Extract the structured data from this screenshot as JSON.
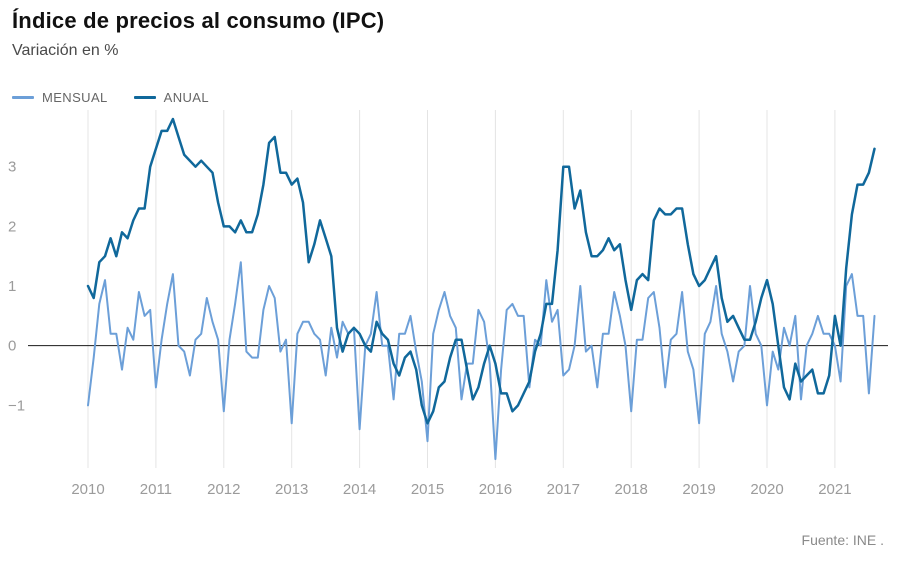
{
  "header": {
    "title": "Índice de precios al consumo (IPC)",
    "subtitle": "Variación en %"
  },
  "legend": [
    {
      "label": "MENSUAL",
      "color": "#6c9fd8"
    },
    {
      "label": "ANUAL",
      "color": "#10689b"
    }
  ],
  "footer": {
    "source": "Fuente: INE ."
  },
  "chart_data": {
    "type": "line",
    "title": "Índice de precios al consumo (IPC)",
    "subtitle": "Variación en %",
    "x_unit": "month",
    "x_start": "2010-01",
    "x_end": "2021-08",
    "x_start_year": 2010,
    "x_tick_labels": [
      "2010",
      "2011",
      "2012",
      "2013",
      "2014",
      "2015",
      "2016",
      "2017",
      "2018",
      "2019",
      "2020",
      "2021"
    ],
    "y_ticks": [
      {
        "label": "3",
        "value": 3
      },
      {
        "label": "2",
        "value": 2
      },
      {
        "label": "1",
        "value": 1
      },
      {
        "label": "0",
        "value": 0
      },
      {
        "label": "−1",
        "value": -1
      }
    ],
    "ylim": [
      -2.05,
      3.95
    ],
    "grid": "vertical-only",
    "grid_color": "#e4e4e4",
    "zero_line_color": "#1a1a1a",
    "tick_color": "#9b9b9b",
    "legend_position": "top-left",
    "series": [
      {
        "name": "MENSUAL",
        "color": "#6c9fd8",
        "width": 2,
        "values": [
          -1.0,
          -0.2,
          0.7,
          1.1,
          0.2,
          0.2,
          -0.4,
          0.3,
          0.1,
          0.9,
          0.5,
          0.6,
          -0.7,
          0.1,
          0.7,
          1.2,
          0.0,
          -0.1,
          -0.5,
          0.1,
          0.2,
          0.8,
          0.4,
          0.1,
          -1.1,
          0.1,
          0.7,
          1.4,
          -0.1,
          -0.2,
          -0.2,
          0.6,
          1.0,
          0.8,
          -0.1,
          0.1,
          -1.3,
          0.2,
          0.4,
          0.4,
          0.2,
          0.1,
          -0.5,
          0.3,
          -0.2,
          0.4,
          0.2,
          0.3,
          -1.4,
          0.0,
          0.2,
          0.9,
          0.0,
          0.0,
          -0.9,
          0.2,
          0.2,
          0.5,
          -0.1,
          -0.6,
          -1.6,
          0.2,
          0.6,
          0.9,
          0.5,
          0.3,
          -0.9,
          -0.3,
          -0.3,
          0.6,
          0.4,
          -0.3,
          -1.9,
          -0.4,
          0.6,
          0.7,
          0.5,
          0.5,
          -0.7,
          0.1,
          0.0,
          1.1,
          0.4,
          0.6,
          -0.5,
          -0.4,
          0.0,
          1.0,
          -0.1,
          0.0,
          -0.7,
          0.2,
          0.2,
          0.9,
          0.5,
          0.0,
          -1.1,
          0.1,
          0.1,
          0.8,
          0.9,
          0.3,
          -0.7,
          0.1,
          0.2,
          0.9,
          -0.1,
          -0.4,
          -1.3,
          0.2,
          0.4,
          1.0,
          0.2,
          -0.1,
          -0.6,
          -0.1,
          0.0,
          1.0,
          0.2,
          0.0,
          -1.0,
          -0.1,
          -0.4,
          0.3,
          0.0,
          0.5,
          -0.9,
          0.0,
          0.2,
          0.5,
          0.2,
          0.2,
          0.0,
          -0.6,
          1.0,
          1.2,
          0.5,
          0.5,
          -0.8,
          0.5
        ]
      },
      {
        "name": "ANUAL",
        "color": "#10689b",
        "width": 2.5,
        "values": [
          1.0,
          0.8,
          1.4,
          1.5,
          1.8,
          1.5,
          1.9,
          1.8,
          2.1,
          2.3,
          2.3,
          3.0,
          3.3,
          3.6,
          3.6,
          3.8,
          3.5,
          3.2,
          3.1,
          3.0,
          3.1,
          3.0,
          2.9,
          2.4,
          2.0,
          2.0,
          1.9,
          2.1,
          1.9,
          1.9,
          2.2,
          2.7,
          3.4,
          3.5,
          2.9,
          2.9,
          2.7,
          2.8,
          2.4,
          1.4,
          1.7,
          2.1,
          1.8,
          1.5,
          0.3,
          -0.1,
          0.2,
          0.3,
          0.2,
          0.0,
          -0.1,
          0.4,
          0.2,
          0.1,
          -0.3,
          -0.5,
          -0.2,
          -0.1,
          -0.4,
          -1.0,
          -1.3,
          -1.1,
          -0.7,
          -0.6,
          -0.2,
          0.1,
          0.1,
          -0.4,
          -0.9,
          -0.7,
          -0.3,
          0.0,
          -0.3,
          -0.8,
          -0.8,
          -1.1,
          -1.0,
          -0.8,
          -0.6,
          -0.1,
          0.2,
          0.7,
          0.7,
          1.6,
          3.0,
          3.0,
          2.3,
          2.6,
          1.9,
          1.5,
          1.5,
          1.6,
          1.8,
          1.6,
          1.7,
          1.1,
          0.6,
          1.1,
          1.2,
          1.1,
          2.1,
          2.3,
          2.2,
          2.2,
          2.3,
          2.3,
          1.7,
          1.2,
          1.0,
          1.1,
          1.3,
          1.5,
          0.8,
          0.4,
          0.5,
          0.3,
          0.1,
          0.1,
          0.4,
          0.8,
          1.1,
          0.7,
          0.0,
          -0.7,
          -0.9,
          -0.3,
          -0.6,
          -0.5,
          -0.4,
          -0.8,
          -0.8,
          -0.5,
          0.5,
          0.0,
          1.3,
          2.2,
          2.7,
          2.7,
          2.9,
          3.3
        ]
      }
    ]
  }
}
